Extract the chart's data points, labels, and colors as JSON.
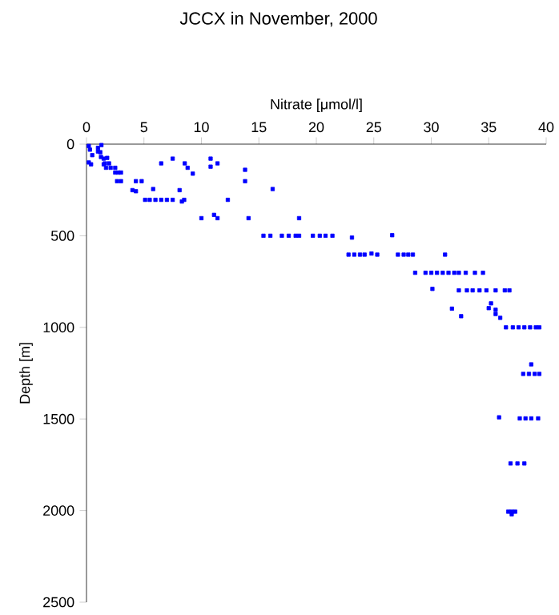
{
  "chart_data": {
    "type": "scatter",
    "title": "JCCX in November, 2000",
    "xlabel": "Nitrate [μmol/l]",
    "ylabel": "Depth [m]",
    "xlim": [
      0,
      40
    ],
    "xticks": [
      0,
      5,
      10,
      15,
      20,
      25,
      30,
      35,
      40
    ],
    "ylim": [
      2500,
      0
    ],
    "yticks": [
      0,
      500,
      1000,
      1500,
      2000,
      2500
    ],
    "marker": "square",
    "grid": false,
    "series": [
      {
        "color": "#0000ff",
        "x": [
          0.2,
          0.3,
          0.5,
          0.2,
          0.4,
          1.0,
          1.3,
          1.0,
          1.5,
          1.8,
          1.2,
          1.26,
          1.5,
          1.6,
          1.7,
          1.96,
          2.1,
          2.5,
          2.5,
          2.76,
          3.0,
          2.66,
          3.0,
          4.3,
          4.8,
          4.0,
          4.3,
          5.8,
          6.5,
          7.5,
          8.55,
          8.8,
          9.25,
          8.1,
          10.8,
          10.8,
          11.4,
          13.8,
          13.8,
          16.2,
          5.1,
          5.5,
          6.0,
          6.5,
          7.0,
          7.5,
          8.3,
          8.5,
          12.3,
          10.0,
          11.1,
          11.4,
          14.1,
          18.5,
          15.4,
          16.0,
          17.0,
          17.6,
          18.2,
          18.5,
          19.7,
          20.3,
          20.8,
          21.4,
          23.1,
          26.6,
          22.8,
          23.3,
          23.8,
          24.2,
          24.8,
          25.3,
          27.1,
          27.6,
          28.0,
          28.4,
          31.2,
          28.6,
          29.5,
          30.0,
          30.5,
          31.0,
          31.5,
          32.0,
          32.4,
          33.0,
          33.8,
          34.5,
          30.1,
          32.4,
          33.1,
          33.6,
          34.2,
          34.8,
          35.6,
          36.4,
          36.8,
          35.2,
          35.0,
          35.6,
          35.6,
          36.0,
          31.8,
          32.6,
          36.5,
          37.1,
          37.6,
          38.1,
          38.6,
          39.1,
          39.4,
          38.7,
          38.0,
          38.5,
          39.0,
          39.4,
          35.9,
          37.7,
          38.2,
          38.7,
          39.3,
          36.9,
          37.5,
          38.1,
          36.7,
          37.0,
          37.3,
          37.0
        ],
        "values": [
          10,
          30,
          60,
          100,
          110,
          20,
          5,
          40,
          110,
          75,
          44,
          70,
          79,
          105,
          129,
          105,
          129,
          129,
          155,
          155,
          155,
          202,
          202,
          202,
          202,
          251,
          257,
          245,
          105,
          79,
          105,
          129,
          161,
          251,
          79,
          123,
          105,
          140,
          202,
          245,
          304,
          304,
          304,
          304,
          304,
          304,
          313,
          304,
          304,
          404,
          386,
          404,
          404,
          404,
          500,
          500,
          500,
          500,
          500,
          500,
          500,
          500,
          500,
          500,
          510,
          497,
          603,
          603,
          603,
          603,
          597,
          603,
          603,
          603,
          603,
          603,
          603,
          702,
          702,
          702,
          702,
          702,
          702,
          702,
          702,
          702,
          702,
          702,
          790,
          798,
          798,
          798,
          798,
          798,
          798,
          798,
          798,
          869,
          895,
          904,
          927,
          948,
          898,
          939,
          1000,
          1000,
          1000,
          1000,
          1000,
          1000,
          1000,
          1202,
          1254,
          1254,
          1254,
          1254,
          1491,
          1497,
          1497,
          1497,
          1497,
          1743,
          1743,
          1743,
          2006,
          2006,
          2006,
          2020
        ]
      }
    ]
  }
}
